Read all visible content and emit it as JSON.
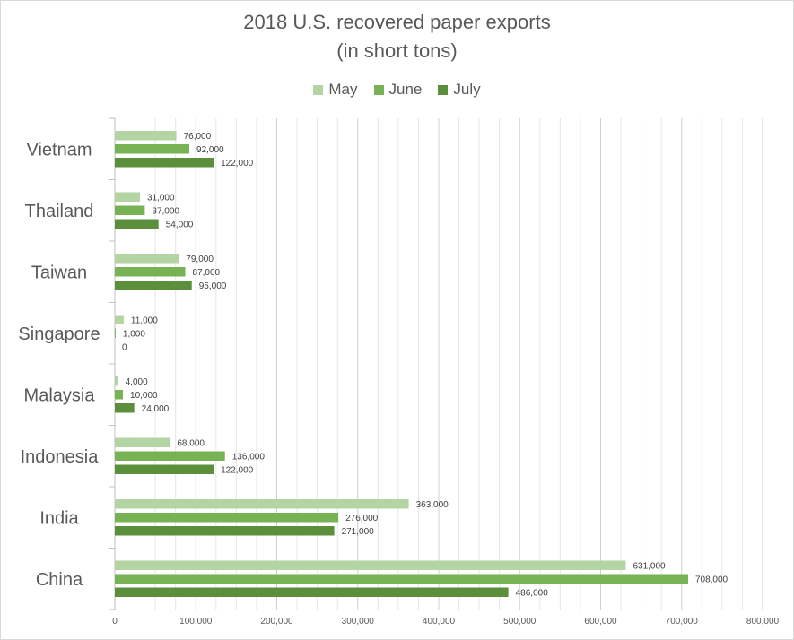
{
  "chart_data": {
    "type": "bar",
    "orientation": "horizontal",
    "title": "2018 U.S. recovered paper exports",
    "subtitle": "(in short tons)",
    "categories": [
      "Vietnam",
      "Thailand",
      "Taiwan",
      "Singapore",
      "Malaysia",
      "Indonesia",
      "India",
      "China"
    ],
    "series": [
      {
        "name": "May",
        "color": "#b4d4a4",
        "values": [
          76000,
          31000,
          79000,
          11000,
          4000,
          68000,
          363000,
          631000
        ],
        "labels": [
          "76,000",
          "31,000",
          "79,000",
          "11,000",
          "4,000",
          "68,000",
          "363,000",
          "631,000"
        ]
      },
      {
        "name": "June",
        "color": "#77b255",
        "values": [
          92000,
          37000,
          87000,
          1000,
          10000,
          136000,
          276000,
          708000
        ],
        "labels": [
          "92,000",
          "37,000",
          "87,000",
          "1,000",
          "10,000",
          "136,000",
          "276,000",
          "708,000"
        ]
      },
      {
        "name": "July",
        "color": "#5b8f3c",
        "values": [
          122000,
          54000,
          95000,
          0,
          24000,
          122000,
          271000,
          486000
        ],
        "labels": [
          "122,000",
          "54,000",
          "95,000",
          "0",
          "24,000",
          "122,000",
          "271,000",
          "486,000"
        ]
      }
    ],
    "xlim": [
      0,
      800000
    ],
    "xticks": [
      0,
      100000,
      200000,
      300000,
      400000,
      500000,
      600000,
      700000,
      800000
    ],
    "xtick_labels": [
      "0",
      "100,000",
      "200,000",
      "300,000",
      "400,000",
      "500,000",
      "600,000",
      "700,000",
      "800,000"
    ],
    "legend_position": "top",
    "grid": true
  }
}
